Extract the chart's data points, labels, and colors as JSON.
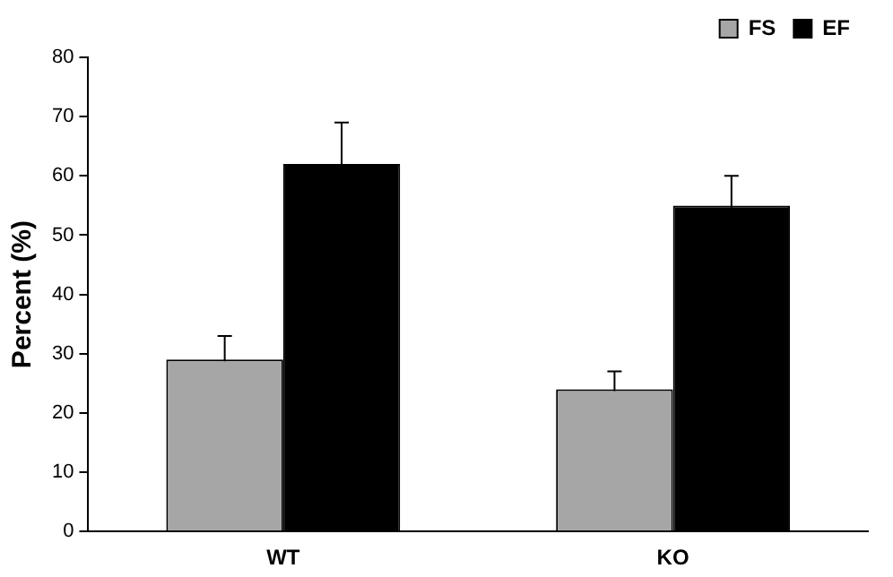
{
  "chart_data": {
    "type": "bar",
    "ylabel": "Percent (%)",
    "categories": [
      "WT",
      "KO"
    ],
    "series": [
      {
        "name": "FS",
        "color": "#a6a6a6",
        "values": [
          29,
          24
        ],
        "errors": [
          4,
          3
        ]
      },
      {
        "name": "EF",
        "color": "#000000",
        "values": [
          62,
          55
        ],
        "errors": [
          7,
          5
        ]
      }
    ],
    "ylim": [
      0,
      80
    ],
    "yticks": [
      0,
      10,
      20,
      30,
      40,
      50,
      60,
      70,
      80
    ],
    "grid": false,
    "legend": "top right"
  }
}
